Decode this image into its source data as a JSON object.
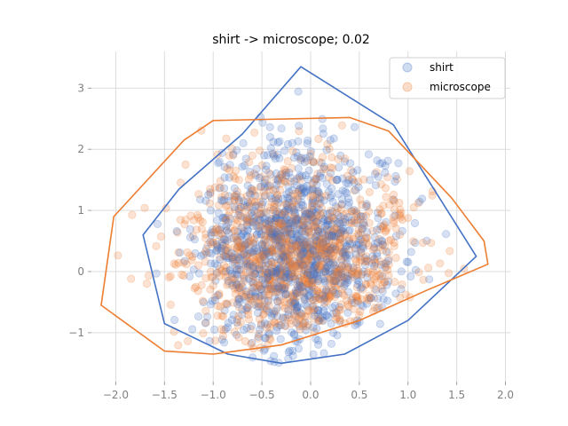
{
  "chart_data": {
    "type": "scatter",
    "title": "shirt -> microscope; 0.02",
    "xlabel": "",
    "ylabel": "",
    "xlim": [
      -2.25,
      2.05
    ],
    "ylim": [
      -1.8,
      3.6
    ],
    "xticks": [
      -2.0,
      -1.5,
      -1.0,
      -0.5,
      0.0,
      0.5,
      1.0,
      1.5,
      2.0
    ],
    "xtick_labels": [
      "−2.0",
      "−1.5",
      "−1.0",
      "−0.5",
      "0.0",
      "0.5",
      "1.0",
      "1.5",
      "2.0"
    ],
    "yticks": [
      -1,
      0,
      1,
      2,
      3
    ],
    "ytick_labels": [
      "−1",
      "0",
      "1",
      "2",
      "3"
    ],
    "grid": true,
    "legend_position": "top-right",
    "series": [
      {
        "name": "shirt",
        "color": "#4472C4",
        "point_alpha": 0.22,
        "cloud": {
          "n": 1100,
          "center": [
            -0.15,
            0.35
          ],
          "spread": [
            0.5,
            0.85
          ],
          "xrange": [
            -1.7,
            1.65
          ],
          "yrange": [
            -1.5,
            3.1
          ],
          "seed": 7
        },
        "hull": [
          [
            -0.1,
            3.35
          ],
          [
            0.85,
            2.4
          ],
          [
            1.7,
            0.25
          ],
          [
            1.0,
            -0.8
          ],
          [
            0.35,
            -1.35
          ],
          [
            -0.3,
            -1.5
          ],
          [
            -0.85,
            -1.35
          ],
          [
            -1.5,
            -0.85
          ],
          [
            -1.72,
            0.6
          ],
          [
            -1.35,
            1.35
          ],
          [
            -0.7,
            2.25
          ]
        ]
      },
      {
        "name": "microscope",
        "color": "#ED7D31",
        "point_alpha": 0.22,
        "cloud": {
          "n": 1100,
          "center": [
            -0.1,
            0.25
          ],
          "spread": [
            0.6,
            0.75
          ],
          "xrange": [
            -2.1,
            1.8
          ],
          "yrange": [
            -1.35,
            2.5
          ],
          "seed": 13
        },
        "hull": [
          [
            -1.0,
            2.47
          ],
          [
            0.4,
            2.52
          ],
          [
            0.8,
            2.3
          ],
          [
            1.45,
            1.2
          ],
          [
            1.78,
            0.5
          ],
          [
            1.82,
            0.12
          ],
          [
            1.2,
            -0.3
          ],
          [
            0.5,
            -0.8
          ],
          [
            -0.3,
            -1.2
          ],
          [
            -1.0,
            -1.35
          ],
          [
            -1.5,
            -1.3
          ],
          [
            -2.15,
            -0.55
          ],
          [
            -2.02,
            0.9
          ],
          [
            -1.3,
            2.15
          ]
        ]
      }
    ]
  }
}
